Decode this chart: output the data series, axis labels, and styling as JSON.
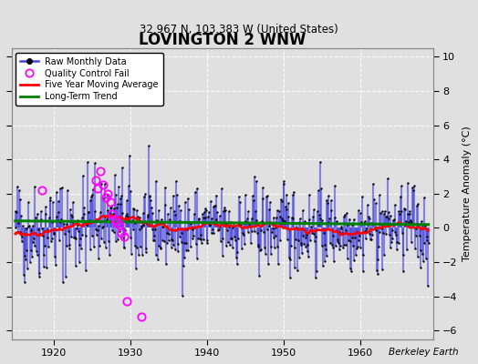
{
  "title": "LOVINGTON 2 WNW",
  "subtitle": "32.967 N, 103.383 W (United States)",
  "ylabel": "Temperature Anomaly (°C)",
  "credit": "Berkeley Earth",
  "xlim": [
    1914.5,
    1969.5
  ],
  "ylim": [
    -6.5,
    10.5
  ],
  "yticks": [
    -6,
    -4,
    -2,
    0,
    2,
    4,
    6,
    8,
    10
  ],
  "xticks": [
    1920,
    1930,
    1940,
    1950,
    1960
  ],
  "background_color": "#e0e0e0",
  "plot_bg_color": "#e0e0e0",
  "grid_color": "white",
  "raw_line_color": "#4444dd",
  "raw_dot_color": "black",
  "qc_fail_color": "magenta",
  "moving_avg_color": "red",
  "trend_color": "green",
  "seed": 42,
  "start_year": 1915,
  "end_year": 1968,
  "long_term_slope": -0.004,
  "long_term_intercept": 0.3,
  "figwidth": 5.24,
  "figheight": 4.0,
  "dpi": 100,
  "qc_fail_positions": [
    [
      1918.5,
      2.2
    ],
    [
      1925.5,
      2.8
    ],
    [
      1925.8,
      2.3
    ],
    [
      1926.1,
      3.3
    ],
    [
      1926.5,
      2.5
    ],
    [
      1926.8,
      1.8
    ],
    [
      1927.1,
      2.0
    ],
    [
      1927.4,
      1.5
    ],
    [
      1927.7,
      0.8
    ],
    [
      1928.0,
      0.5
    ],
    [
      1928.3,
      0.3
    ],
    [
      1928.6,
      0.2
    ],
    [
      1928.9,
      -0.3
    ],
    [
      1929.2,
      -0.5
    ],
    [
      1929.5,
      -4.3
    ],
    [
      1931.5,
      -5.2
    ]
  ]
}
